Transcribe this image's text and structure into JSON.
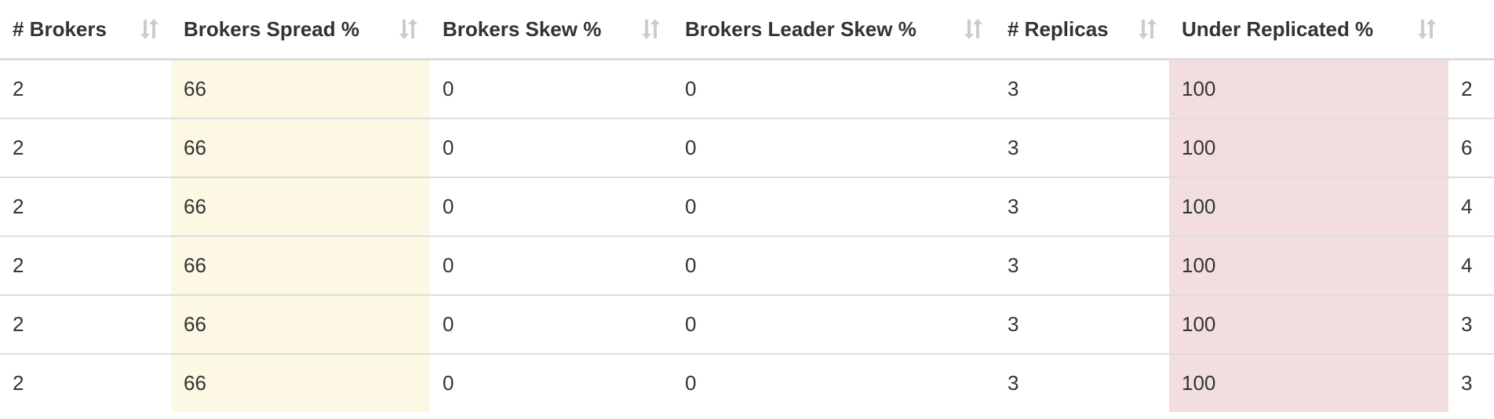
{
  "table": {
    "columns": [
      {
        "label": "# Brokers",
        "sort_icon": "sort-icon"
      },
      {
        "label": "Brokers Spread %",
        "sort_icon": "sort-icon"
      },
      {
        "label": "Brokers Skew %",
        "sort_icon": "sort-icon"
      },
      {
        "label": "Brokers Leader Skew %",
        "sort_icon": "sort-icon"
      },
      {
        "label": "# Replicas",
        "sort_icon": "sort-icon"
      },
      {
        "label": "Under Replicated %",
        "sort_icon": "sort-icon"
      },
      {
        "label": "",
        "sort_icon": "sort-icon"
      }
    ],
    "rows": [
      {
        "cells": [
          "2",
          "66",
          "0",
          "0",
          "3",
          "100",
          "2"
        ]
      },
      {
        "cells": [
          "2",
          "66",
          "0",
          "0",
          "3",
          "100",
          "6"
        ]
      },
      {
        "cells": [
          "2",
          "66",
          "0",
          "0",
          "3",
          "100",
          "4"
        ]
      },
      {
        "cells": [
          "2",
          "66",
          "0",
          "0",
          "3",
          "100",
          "4"
        ]
      },
      {
        "cells": [
          "2",
          "66",
          "0",
          "0",
          "3",
          "100",
          "3"
        ]
      },
      {
        "cells": [
          "2",
          "66",
          "0",
          "0",
          "3",
          "100",
          "3"
        ]
      }
    ]
  },
  "colors": {
    "warning_highlight": "#fcf8e3",
    "danger_highlight": "#f2dede",
    "border": "#dddddd",
    "sort_icon": "#cccccc"
  }
}
